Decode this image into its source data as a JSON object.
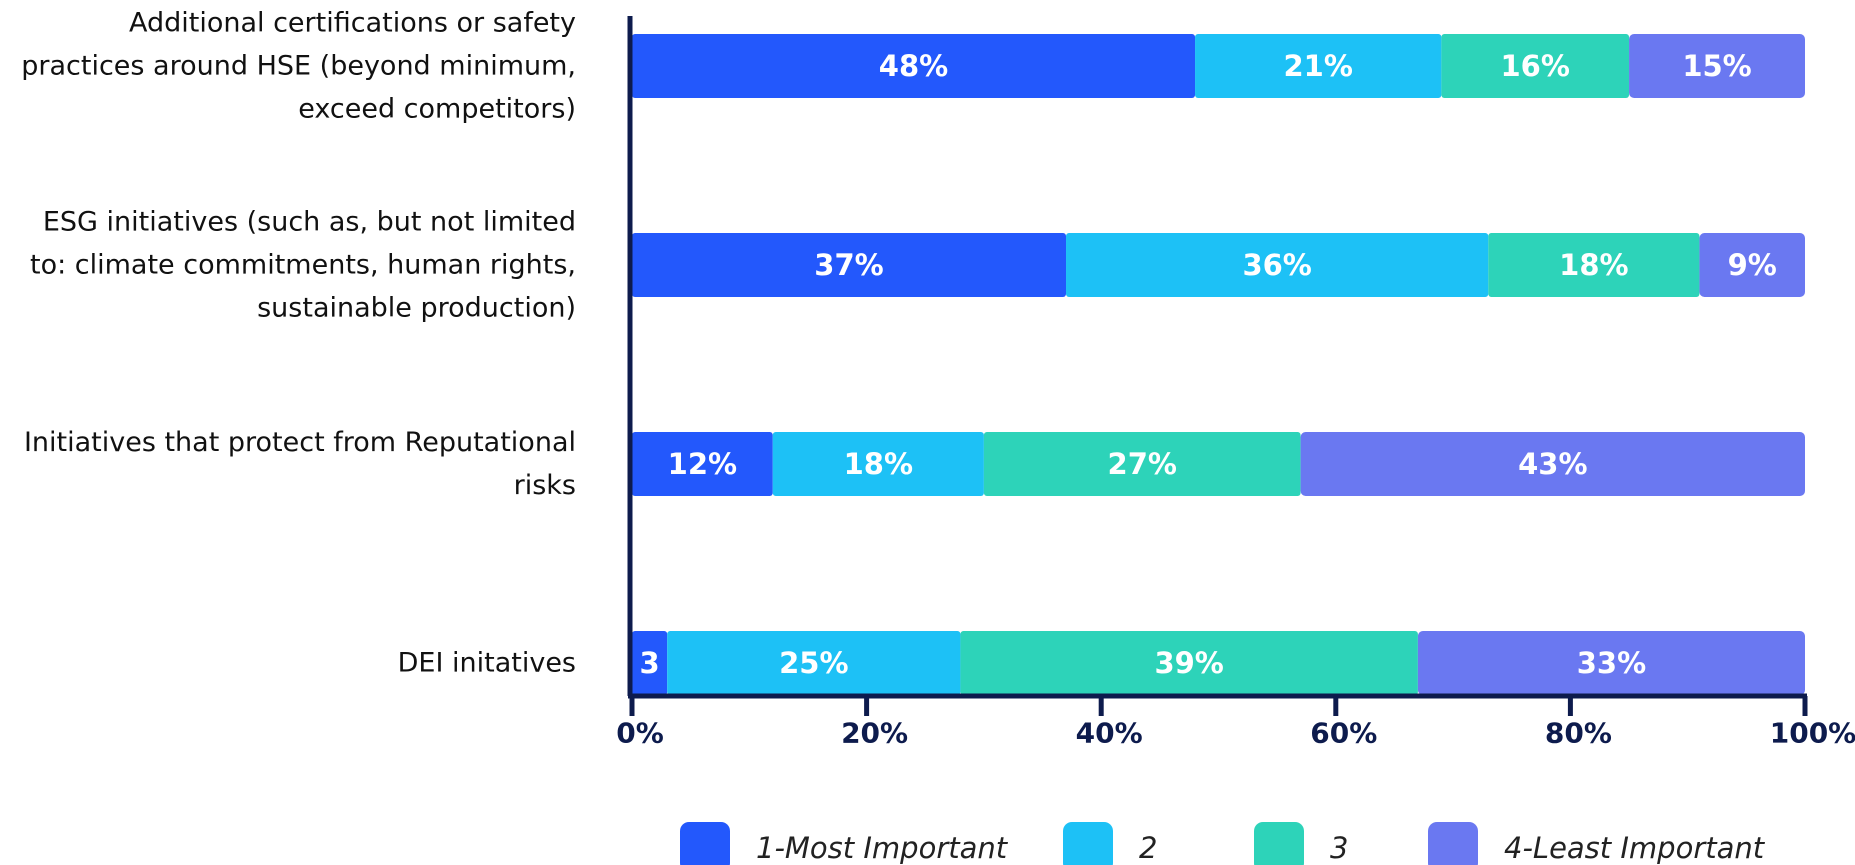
{
  "chart_data": {
    "type": "stacked-hbar",
    "categories": [
      "Additional certifications or safety practices around HSE (beyond minimum, exceed competitors)",
      "ESG initiatives (such as, but not limited to: climate commitments, human rights, sustainable production)",
      "Initiatives that protect from Reputational risks",
      "DEI initatives"
    ],
    "series": [
      {
        "name": "1-Most Important",
        "color": "#2358fc",
        "values": [
          48,
          37,
          12,
          3
        ],
        "value_labels": [
          "48%",
          "37%",
          "12%",
          "3"
        ]
      },
      {
        "name": "2",
        "color": "#1dc1f6",
        "values": [
          21,
          36,
          18,
          25
        ],
        "value_labels": [
          "21%",
          "36%",
          "18%",
          "25%"
        ]
      },
      {
        "name": "3",
        "color": "#2dd3b9",
        "values": [
          16,
          18,
          27,
          39
        ],
        "value_labels": [
          "16%",
          "18%",
          "27%",
          "39%"
        ]
      },
      {
        "name": "4-Least Important",
        "color": "#6a78f1",
        "values": [
          15,
          9,
          43,
          33
        ],
        "value_labels": [
          "15%",
          "9%",
          "43%",
          "33%"
        ]
      }
    ],
    "xlim": [
      0,
      100
    ],
    "xticks": [
      {
        "value": 0,
        "label": "0%"
      },
      {
        "value": 20,
        "label": "20%"
      },
      {
        "value": 40,
        "label": "40%"
      },
      {
        "value": 60,
        "label": "60%"
      },
      {
        "value": 80,
        "label": "80%"
      },
      {
        "value": 100,
        "label": "100%"
      }
    ],
    "axis_color": "#0d1b4d"
  }
}
